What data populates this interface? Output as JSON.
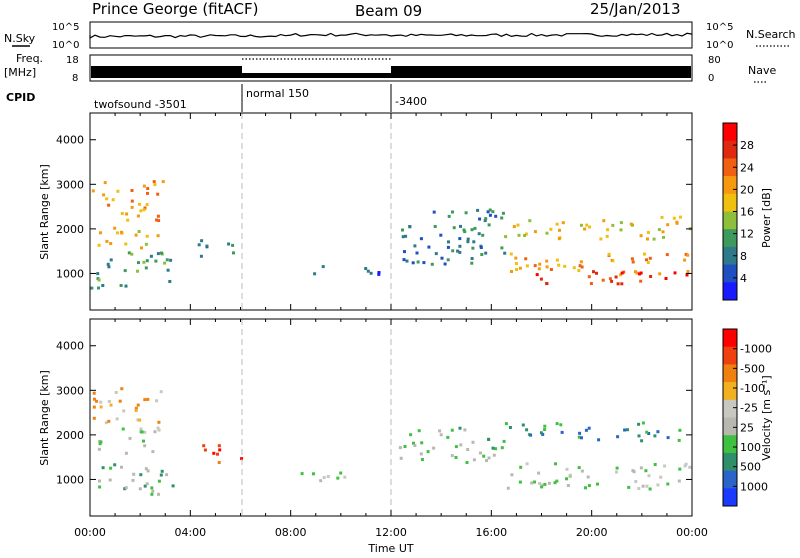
{
  "header": {
    "radar_title": "Prince George (fitACF)",
    "beam": "Beam 09",
    "date": "25/Jan/2013"
  },
  "noise_panel": {
    "left_label": "N.Sky",
    "right_label": "N.Search",
    "y_ticks": [
      "10^5",
      "10^0"
    ]
  },
  "freq_panel": {
    "left_label_1": "Freq.",
    "left_label_2": "[MHz]",
    "right_label": "Nave",
    "left_ticks": [
      "18",
      "8"
    ],
    "right_ticks": [
      "80",
      "0"
    ]
  },
  "cpid_panel": {
    "label": "CPID",
    "segments": [
      {
        "start_hour": 0,
        "end_hour": 6,
        "text": "twofsound -3501"
      },
      {
        "start_hour": 6,
        "end_hour": 12,
        "text": "normal 150"
      },
      {
        "start_hour": 12,
        "end_hour": 24,
        "text": "-3400"
      }
    ]
  },
  "chart_data": [
    {
      "type": "heatmap",
      "name_label": "Power panel",
      "ylabel": "Slant Range [km]",
      "xlabel": "",
      "xlim": [
        0,
        24
      ],
      "ylim": [
        180,
        4600
      ],
      "y_ticks": [
        1000,
        2000,
        3000,
        4000
      ],
      "colorbar": {
        "label": "Power [dB]",
        "ticks": [
          "4",
          "8",
          "12",
          "16",
          "20",
          "24",
          "28"
        ],
        "colors": [
          "#1a1aff",
          "#1f4fc0",
          "#2f7a8a",
          "#3d9a5c",
          "#8fbf3a",
          "#f0c010",
          "#f59a10",
          "#f06010",
          "#e02a10",
          "#ff0000"
        ]
      },
      "blobs": [
        {
          "h0": 0.0,
          "h1": 2.9,
          "r0": 2200,
          "r1": 3100,
          "level": 6
        },
        {
          "h0": 0.0,
          "h1": 3.3,
          "r0": 700,
          "r1": 1500,
          "level": 3
        },
        {
          "h0": 0.3,
          "h1": 3.0,
          "r0": 1600,
          "r1": 2100,
          "level": 5
        },
        {
          "h0": 4.2,
          "h1": 6.0,
          "r0": 1400,
          "r1": 1800,
          "level": 2
        },
        {
          "h0": 8.4,
          "h1": 11.6,
          "r0": 1000,
          "r1": 1200,
          "level": 1
        },
        {
          "h0": 12.3,
          "h1": 16.5,
          "r0": 1200,
          "r1": 2600,
          "level": 2
        },
        {
          "h0": 16.5,
          "h1": 24.0,
          "r0": 1800,
          "r1": 2300,
          "level": 5
        },
        {
          "h0": 16.5,
          "h1": 24.0,
          "r0": 1000,
          "r1": 1500,
          "level": 6
        },
        {
          "h0": 17.5,
          "h1": 24.0,
          "r0": 800,
          "r1": 1100,
          "level": 8
        }
      ]
    },
    {
      "type": "heatmap",
      "name_label": "Velocity panel",
      "ylabel": "Slant Range [km]",
      "xlabel": "Time UT",
      "xlim": [
        0,
        24
      ],
      "ylim": [
        180,
        4600
      ],
      "y_ticks": [
        1000,
        2000,
        3000,
        4000
      ],
      "x_ticks": [
        "00:00",
        "04:00",
        "08:00",
        "12:00",
        "16:00",
        "20:00",
        "00:00"
      ],
      "colorbar": {
        "label": "Velocity [m s⁻¹]",
        "ticks": [
          "1000",
          "500",
          "100",
          "25",
          "-25",
          "-100",
          "-500",
          "-1000"
        ],
        "colors": [
          "#1a3aff",
          "#2a64c8",
          "#2f8f6a",
          "#40c040",
          "#b8b8b0",
          "#c8c8c0",
          "#f0b020",
          "#f08010",
          "#f04010",
          "#ff0000"
        ]
      },
      "blobs": [
        {
          "h0": 0.0,
          "h1": 2.9,
          "r0": 2300,
          "r1": 3100,
          "level": 6
        },
        {
          "h0": 0.0,
          "h1": 3.3,
          "r0": 700,
          "r1": 1400,
          "level": 3
        },
        {
          "h0": 0.2,
          "h1": 2.8,
          "r0": 1600,
          "r1": 2200,
          "level": 4
        },
        {
          "h0": 4.2,
          "h1": 6.0,
          "r0": 1400,
          "r1": 1800,
          "level": 8
        },
        {
          "h0": 8.0,
          "h1": 11.6,
          "r0": 1000,
          "r1": 1200,
          "level": 4
        },
        {
          "h0": 12.3,
          "h1": 16.5,
          "r0": 1400,
          "r1": 2200,
          "level": 3
        },
        {
          "h0": 16.5,
          "h1": 24.0,
          "r0": 1900,
          "r1": 2300,
          "level": 2
        },
        {
          "h0": 16.5,
          "h1": 24.0,
          "r0": 800,
          "r1": 1400,
          "level": 4
        }
      ]
    }
  ]
}
